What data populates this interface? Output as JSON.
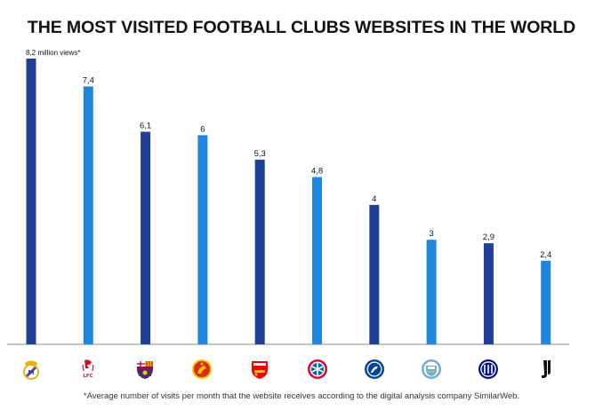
{
  "title": "THE MOST VISITED FOOTBALL CLUBS WEBSITES IN THE WORLD",
  "footnote": "*Average number of visits per month that the website receives according to the digital analysis company SimilarWeb.",
  "colors": {
    "dark_bar": "#1f3f99",
    "light_bar": "#1f86dd",
    "axis": "#888888"
  },
  "chart_data": {
    "type": "bar",
    "categories": [
      "Real Madrid",
      "Liverpool",
      "Barcelona",
      "Manchester United",
      "Arsenal",
      "Bayern Munich",
      "Chelsea",
      "Manchester City",
      "Inter",
      "Juventus"
    ],
    "values": [
      8.2,
      7.4,
      6.1,
      6,
      5.3,
      4.8,
      4,
      3,
      2.9,
      2.4
    ],
    "data_labels": [
      "8,2 million views*",
      "7,4",
      "6,1",
      "6",
      "5,3",
      "4,8",
      "4",
      "3",
      "2,9",
      "2,4"
    ],
    "title": "THE MOST VISITED FOOTBALL CLUBS WEBSITES IN THE WORLD",
    "xlabel": "",
    "ylabel": "",
    "ylim": [
      0,
      8.2
    ],
    "grid": false,
    "legend": "none"
  },
  "logos": [
    "real-madrid-crest",
    "liverpool-crest",
    "barcelona-crest",
    "manchester-united-crest",
    "arsenal-crest",
    "bayern-munich-crest",
    "chelsea-crest",
    "manchester-city-crest",
    "inter-crest",
    "juventus-logo"
  ],
  "logo_text": {
    "liverpool": "LFC"
  }
}
